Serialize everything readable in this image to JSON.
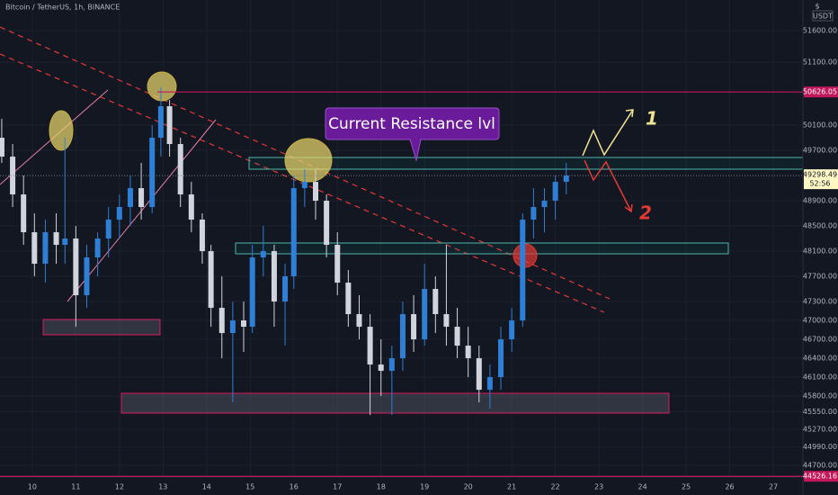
{
  "chart_data": {
    "type": "candlestick",
    "title": "Bitcoin / TetherUS, 1h, BINANCE",
    "currency": "USDT",
    "currency_symbol": "$",
    "x": [
      9.3,
      9.55,
      9.8,
      10.05,
      10.3,
      10.55,
      10.75,
      11.0,
      11.25,
      11.5,
      11.75,
      12.0,
      12.25,
      12.5,
      12.75,
      12.95,
      13.15,
      13.4,
      13.65,
      13.9,
      14.1,
      14.35,
      14.6,
      14.85,
      15.05,
      15.3,
      15.55,
      15.8,
      16.0,
      16.25,
      16.5,
      16.75,
      17.0,
      17.25,
      17.5,
      17.75,
      18.0,
      18.25,
      18.5,
      18.75,
      19.0,
      19.25,
      19.5,
      19.75,
      20.0,
      20.25,
      20.5,
      20.75,
      21.0,
      21.25,
      21.5,
      21.75,
      22.0,
      22.25
    ],
    "open": [
      49900,
      49600,
      49000,
      48400,
      47900,
      48400,
      48200,
      48300,
      47400,
      48000,
      48300,
      48600,
      48800,
      49100,
      48800,
      49900,
      50400,
      49800,
      49000,
      48600,
      48100,
      47200,
      46800,
      47000,
      46900,
      48000,
      48100,
      47300,
      47700,
      49100,
      49200,
      48900,
      48200,
      47600,
      47100,
      46900,
      46300,
      46200,
      46400,
      47100,
      46700,
      47500,
      47100,
      46900,
      46600,
      46400,
      45900,
      46100,
      46700,
      47000,
      48600,
      48800,
      48900,
      49200
    ],
    "high": [
      50200,
      49800,
      49300,
      48700,
      48600,
      48700,
      49900,
      48500,
      48200,
      48400,
      48800,
      49000,
      49300,
      49500,
      50100,
      50700,
      50500,
      49900,
      49200,
      48700,
      48200,
      47700,
      47300,
      47300,
      48200,
      48500,
      48200,
      47900,
      49300,
      49400,
      49400,
      49000,
      48400,
      47800,
      47400,
      47100,
      46700,
      46600,
      47300,
      47400,
      47900,
      47700,
      48200,
      47200,
      46900,
      46600,
      46300,
      46900,
      47200,
      48700,
      49100,
      49100,
      49300,
      49500
    ],
    "low": [
      49500,
      48800,
      48200,
      47700,
      47600,
      47900,
      47900,
      46900,
      47200,
      47700,
      48000,
      48300,
      48500,
      48600,
      48700,
      49600,
      49600,
      48800,
      48400,
      47900,
      46900,
      46400,
      45700,
      46500,
      46800,
      47700,
      46900,
      46600,
      47500,
      48800,
      48600,
      48000,
      47400,
      46900,
      46700,
      45500,
      45800,
      45500,
      46200,
      46500,
      46600,
      46800,
      46600,
      46400,
      46100,
      45700,
      45600,
      45900,
      46500,
      46900,
      48300,
      48400,
      48600,
      49000
    ],
    "close": [
      49600,
      49000,
      48400,
      47900,
      48400,
      48200,
      48300,
      47400,
      48000,
      48300,
      48600,
      48800,
      49100,
      48800,
      49900,
      50400,
      49800,
      49000,
      48600,
      48100,
      47200,
      46800,
      47000,
      46900,
      48000,
      48100,
      47300,
      47700,
      49100,
      49200,
      48900,
      48200,
      47600,
      47100,
      46900,
      46300,
      46200,
      46400,
      47100,
      46700,
      47500,
      47100,
      46900,
      46600,
      46400,
      45900,
      46100,
      46700,
      47000,
      48600,
      48800,
      48900,
      49200,
      49300
    ],
    "up_color": "#2f7fd6",
    "down_color": "#d1d4dc",
    "xlim": [
      9.26,
      27.68
    ],
    "xticks": [
      10,
      11,
      12,
      13,
      14,
      15,
      16,
      17,
      18,
      19,
      20,
      21,
      22,
      23,
      24,
      25,
      26,
      27
    ],
    "ylim": [
      44515,
      52086
    ],
    "yticks": [
      {
        "value": 51600,
        "label": "51600.00"
      },
      {
        "value": 51100,
        "label": "51100.00"
      },
      {
        "value": 50100,
        "label": "50100.00"
      },
      {
        "value": 49700,
        "label": "49700.00"
      },
      {
        "value": 48900,
        "label": "48900.00"
      },
      {
        "value": 48500,
        "label": "48500.00"
      },
      {
        "value": 48100,
        "label": "48100.00"
      },
      {
        "value": 47700,
        "label": "47700.00"
      },
      {
        "value": 47300,
        "label": "47300.00"
      },
      {
        "value": 47000,
        "label": "47000.00"
      },
      {
        "value": 46700,
        "label": "46700.00"
      },
      {
        "value": 46400,
        "label": "46400.00"
      },
      {
        "value": 46100,
        "label": "46100.00"
      },
      {
        "value": 45800,
        "label": "45800.00"
      },
      {
        "value": 45550,
        "label": "45550.00"
      },
      {
        "value": 45270,
        "label": "45270.00"
      },
      {
        "value": 44990,
        "label": "44990.00"
      },
      {
        "value": 44700,
        "label": "44700.00"
      }
    ],
    "resistance_line": {
      "value": 50626.05,
      "label": "50626.05"
    },
    "support_line": {
      "value": 44526.16,
      "label": "44526.16"
    },
    "last_price": {
      "value": 49298.49,
      "label": "49298.49"
    },
    "countdown": "52:56",
    "annotation": "Current Resistance lvl",
    "scenario_1": "1",
    "scenario_2": "2"
  }
}
